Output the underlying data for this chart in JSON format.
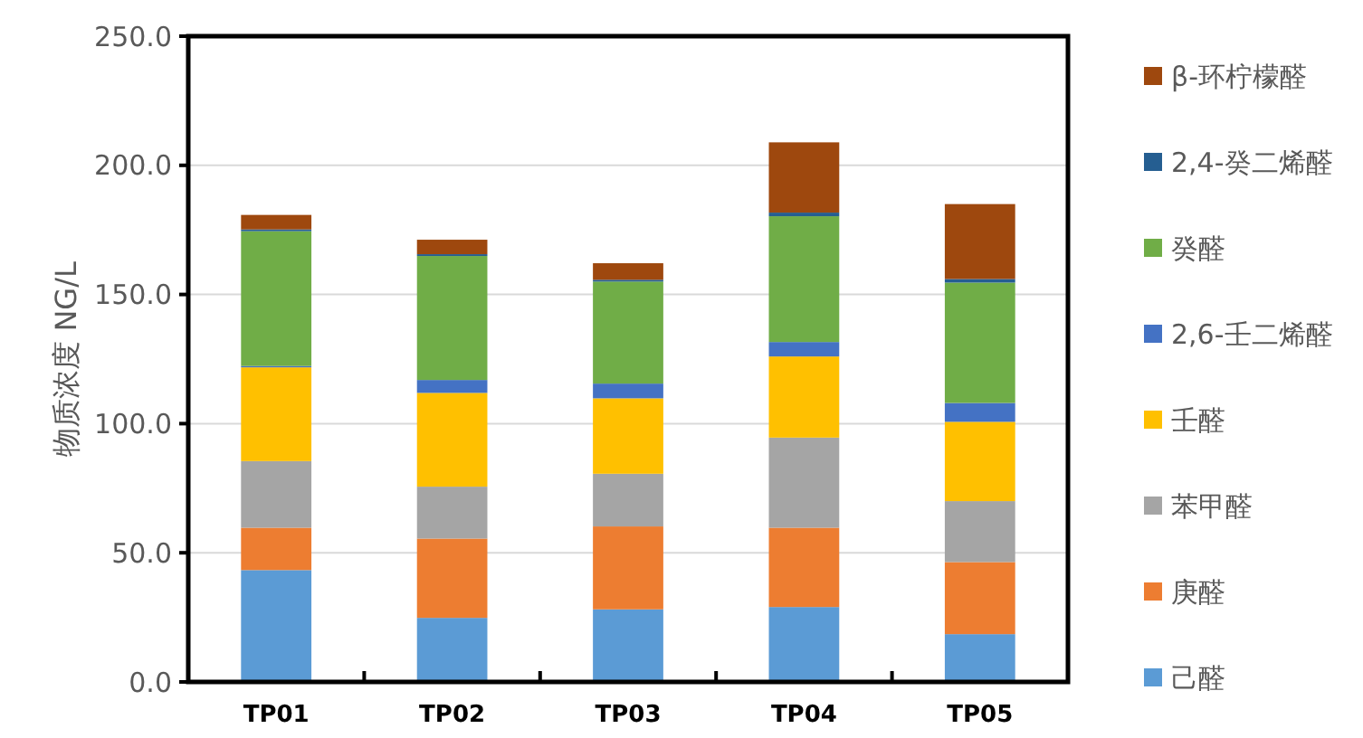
{
  "chart_data": {
    "type": "bar",
    "stacked": true,
    "ylabel": "物质浓度 NG/L",
    "categories": [
      "TP01",
      "TP02",
      "TP03",
      "TP04",
      "TP05"
    ],
    "series": [
      {
        "name": "己醛",
        "color": "#5b9bd5",
        "values": [
          43.3,
          24.8,
          28.1,
          29.0,
          18.5
        ]
      },
      {
        "name": "庚醛",
        "color": "#ed7d31",
        "values": [
          16.4,
          30.7,
          32.1,
          30.7,
          27.9
        ]
      },
      {
        "name": "苯甲醛",
        "color": "#a5a5a5",
        "values": [
          25.8,
          20.1,
          20.4,
          34.9,
          23.6
        ]
      },
      {
        "name": "壬醛",
        "color": "#ffc000",
        "values": [
          36.3,
          36.3,
          29.2,
          31.4,
          30.7
        ]
      },
      {
        "name": "2,6-壬二烯醛",
        "color": "#4472c4",
        "values": [
          0.5,
          5.0,
          5.7,
          5.6,
          7.3
        ]
      },
      {
        "name": "癸醛",
        "color": "#70ad47",
        "values": [
          52.2,
          48.0,
          39.5,
          48.7,
          46.6
        ]
      },
      {
        "name": "2,4-癸二烯醛",
        "color": "#255e91",
        "values": [
          0.7,
          0.7,
          0.7,
          1.4,
          1.4
        ]
      },
      {
        "name": "β-环柠檬醛",
        "color": "#9e480e",
        "values": [
          5.6,
          5.6,
          6.4,
          27.2,
          29.0
        ]
      }
    ],
    "ylim": [
      0,
      250
    ],
    "yticks": [
      {
        "value": 0,
        "label": "0.0"
      },
      {
        "value": 50,
        "label": "50.0"
      },
      {
        "value": 100,
        "label": "100.0"
      },
      {
        "value": 150,
        "label": "150.0"
      },
      {
        "value": 200,
        "label": "200.0"
      },
      {
        "value": 250,
        "label": "250.0"
      }
    ],
    "grid": "y",
    "legend": "right"
  }
}
